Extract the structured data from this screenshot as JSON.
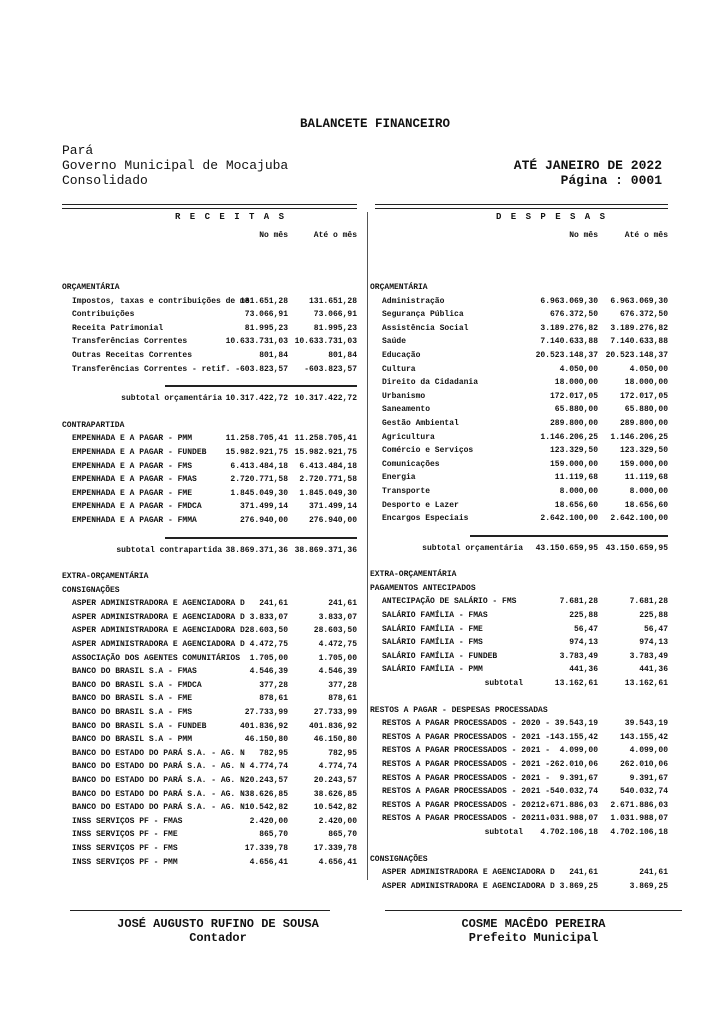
{
  "header": {
    "title": "BALANCETE FINANCEIRO",
    "state": "Pará",
    "entity": "Governo Municipal de Mocajuba",
    "scope": "Consolidado",
    "period": "ATÉ JANEIRO DE 2022",
    "page": "Página : 0001"
  },
  "columns": {
    "receitas": "R E C E I T A S",
    "despesas": "D E S P E S A S",
    "month": "No mês",
    "ytd": "Até o mês"
  },
  "receitas": [
    {
      "kind": "head",
      "label": "ORÇAMENTÁRIA"
    },
    {
      "kind": "item",
      "label": "Impostos, taxas e contribuições de me",
      "month": "131.651,28",
      "ytd": "131.651,28"
    },
    {
      "kind": "item",
      "label": "Contribuições",
      "month": "73.066,91",
      "ytd": "73.066,91"
    },
    {
      "kind": "item",
      "label": "Receita Patrimonial",
      "month": "81.995,23",
      "ytd": "81.995,23"
    },
    {
      "kind": "item",
      "label": "Transferências Correntes",
      "month": "10.633.731,03",
      "ytd": "10.633.731,03"
    },
    {
      "kind": "item",
      "label": "Outras Receitas Correntes",
      "month": "801,84",
      "ytd": "801,84"
    },
    {
      "kind": "item",
      "label": "Transferências Correntes - retif. -",
      "month": "-603.823,57",
      "ytd": "-603.823,57"
    },
    {
      "kind": "subtotal-ruled",
      "label": "subtotal orçamentária",
      "month": "10.317.422,72",
      "ytd": "10.317.422,72"
    },
    {
      "kind": "head",
      "label": "CONTRAPARTIDA"
    },
    {
      "kind": "item",
      "label": "EMPENHADA E A PAGAR - PMM",
      "month": "11.258.705,41",
      "ytd": "11.258.705,41"
    },
    {
      "kind": "item",
      "label": "EMPENHADA E A PAGAR - FUNDEB",
      "month": "15.982.921,75",
      "ytd": "15.982.921,75"
    },
    {
      "kind": "item",
      "label": "EMPENHADA E A PAGAR - FMS",
      "month": "6.413.484,18",
      "ytd": "6.413.484,18"
    },
    {
      "kind": "item",
      "label": "EMPENHADA E A PAGAR - FMAS",
      "month": "2.720.771,58",
      "ytd": "2.720.771,58"
    },
    {
      "kind": "item",
      "label": "EMPENHADA E A PAGAR - FME",
      "month": "1.845.049,30",
      "ytd": "1.845.049,30"
    },
    {
      "kind": "item",
      "label": "EMPENHADA E A PAGAR - FMDCA",
      "month": "371.499,14",
      "ytd": "371.499,14"
    },
    {
      "kind": "item",
      "label": "EMPENHADA E A PAGAR - FMMA",
      "month": "276.940,00",
      "ytd": "276.940,00"
    },
    {
      "kind": "subtotal-ruled",
      "label": "subtotal contrapartida",
      "month": "38.869.371,36",
      "ytd": "38.869.371,36"
    },
    {
      "kind": "head",
      "label": "EXTRA-ORÇAMENTÁRIA"
    },
    {
      "kind": "head",
      "label": "CONSIGNAÇÕES"
    },
    {
      "kind": "item",
      "label": "ASPER ADMINISTRADORA E AGENCIADORA D",
      "month": "241,61",
      "ytd": "241,61"
    },
    {
      "kind": "item",
      "label": "ASPER ADMINISTRADORA E AGENCIADORA D",
      "month": "3.833,07",
      "ytd": "3.833,07"
    },
    {
      "kind": "item",
      "label": "ASPER ADMINISTRADORA E AGENCIADORA D",
      "month": "28.603,50",
      "ytd": "28.603,50"
    },
    {
      "kind": "item",
      "label": "ASPER ADMINISTRADORA E AGENCIADORA D",
      "month": "4.472,75",
      "ytd": "4.472,75"
    },
    {
      "kind": "item",
      "label": "ASSOCIAÇÃO DOS AGENTES COMUNITÁRIOS",
      "month": "1.705,00",
      "ytd": "1.705,00"
    },
    {
      "kind": "item",
      "label": "BANCO DO BRASIL S.A - FMAS",
      "month": "4.546,39",
      "ytd": "4.546,39"
    },
    {
      "kind": "item",
      "label": "BANCO DO BRASIL S.A - FMDCA",
      "month": "377,28",
      "ytd": "377,28"
    },
    {
      "kind": "item",
      "label": "BANCO DO BRASIL S.A - FME",
      "month": "878,61",
      "ytd": "878,61"
    },
    {
      "kind": "item",
      "label": "BANCO DO BRASIL S.A - FMS",
      "month": "27.733,99",
      "ytd": "27.733,99"
    },
    {
      "kind": "item",
      "label": "BANCO DO BRASIL S.A - FUNDEB",
      "month": "401.836,92",
      "ytd": "401.836,92"
    },
    {
      "kind": "item",
      "label": "BANCO DO BRASIL S.A - PMM",
      "month": "46.150,80",
      "ytd": "46.150,80"
    },
    {
      "kind": "item",
      "label": "BANCO DO ESTADO DO PARÁ S.A. - AG. N",
      "month": "782,95",
      "ytd": "782,95"
    },
    {
      "kind": "item",
      "label": "BANCO DO ESTADO DO PARÁ S.A. - AG. N",
      "month": "4.774,74",
      "ytd": "4.774,74"
    },
    {
      "kind": "item",
      "label": "BANCO DO ESTADO DO PARÁ S.A. - AG. N",
      "month": "20.243,57",
      "ytd": "20.243,57"
    },
    {
      "kind": "item",
      "label": "BANCO DO ESTADO DO PARÁ S.A. - AG. N",
      "month": "38.626,85",
      "ytd": "38.626,85"
    },
    {
      "kind": "item",
      "label": "BANCO DO ESTADO DO PARÁ S.A. - AG. N",
      "month": "10.542,82",
      "ytd": "10.542,82"
    },
    {
      "kind": "item",
      "label": "INSS SERVIÇOS PF - FMAS",
      "month": "2.420,00",
      "ytd": "2.420,00"
    },
    {
      "kind": "item",
      "label": "INSS SERVIÇOS PF - FME",
      "month": "865,70",
      "ytd": "865,70"
    },
    {
      "kind": "item",
      "label": "INSS SERVIÇOS PF - FMS",
      "month": "17.339,78",
      "ytd": "17.339,78"
    },
    {
      "kind": "item",
      "label": "INSS SERVIÇOS PF - PMM",
      "month": "4.656,41",
      "ytd": "4.656,41"
    }
  ],
  "despesas": [
    {
      "kind": "head",
      "label": "ORÇAMENTÁRIA"
    },
    {
      "kind": "item",
      "label": "Administração",
      "month": "6.963.069,30",
      "ytd": "6.963.069,30"
    },
    {
      "kind": "item",
      "label": "Segurança Pública",
      "month": "676.372,50",
      "ytd": "676.372,50"
    },
    {
      "kind": "item",
      "label": "Assistência Social",
      "month": "3.189.276,82",
      "ytd": "3.189.276,82"
    },
    {
      "kind": "item",
      "label": "Saúde",
      "month": "7.140.633,88",
      "ytd": "7.140.633,88"
    },
    {
      "kind": "item",
      "label": "Educação",
      "month": "20.523.148,37",
      "ytd": "20.523.148,37"
    },
    {
      "kind": "item",
      "label": "Cultura",
      "month": "4.050,00",
      "ytd": "4.050,00"
    },
    {
      "kind": "item",
      "label": "Direito da Cidadania",
      "month": "18.000,00",
      "ytd": "18.000,00"
    },
    {
      "kind": "item",
      "label": "Urbanismo",
      "month": "172.017,05",
      "ytd": "172.017,05"
    },
    {
      "kind": "item",
      "label": "Saneamento",
      "month": "65.880,00",
      "ytd": "65.880,00"
    },
    {
      "kind": "item",
      "label": "Gestão Ambiental",
      "month": "289.800,00",
      "ytd": "289.800,00"
    },
    {
      "kind": "item",
      "label": "Agricultura",
      "month": "1.146.206,25",
      "ytd": "1.146.206,25"
    },
    {
      "kind": "item",
      "label": "Comércio e Serviços",
      "month": "123.329,50",
      "ytd": "123.329,50"
    },
    {
      "kind": "item",
      "label": "Comunicações",
      "month": "159.000,00",
      "ytd": "159.000,00"
    },
    {
      "kind": "item",
      "label": "Energia",
      "month": "11.119,68",
      "ytd": "11.119,68"
    },
    {
      "kind": "item",
      "label": "Transporte",
      "month": "8.000,00",
      "ytd": "8.000,00"
    },
    {
      "kind": "item",
      "label": "Desporto e Lazer",
      "month": "18.656,60",
      "ytd": "18.656,60"
    },
    {
      "kind": "item",
      "label": "Encargos Especiais",
      "month": "2.642.100,00",
      "ytd": "2.642.100,00"
    },
    {
      "kind": "subtotal-ruled",
      "label": "subtotal orçamentária",
      "month": "43.150.659,95",
      "ytd": "43.150.659,95"
    },
    {
      "kind": "head",
      "label": "EXTRA-ORÇAMENTÁRIA"
    },
    {
      "kind": "head",
      "label": "PAGAMENTOS ANTECIPADOS"
    },
    {
      "kind": "item",
      "label": "ANTECIPAÇÃO DE SALÁRIO - FMS",
      "month": "7.681,28",
      "ytd": "7.681,28"
    },
    {
      "kind": "item",
      "label": "SALÁRIO FAMÍLIA - FMAS",
      "month": "225,88",
      "ytd": "225,88"
    },
    {
      "kind": "item",
      "label": "SALÁRIO FAMÍLIA - FME",
      "month": "56,47",
      "ytd": "56,47"
    },
    {
      "kind": "item",
      "label": "SALÁRIO FAMÍLIA - FMS",
      "month": "974,13",
      "ytd": "974,13"
    },
    {
      "kind": "item",
      "label": "SALÁRIO FAMÍLIA - FUNDEB",
      "month": "3.783,49",
      "ytd": "3.783,49"
    },
    {
      "kind": "item",
      "label": "SALÁRIO FAMÍLIA - PMM",
      "month": "441,36",
      "ytd": "441,36"
    },
    {
      "kind": "subtotal",
      "label": "subtotal",
      "month": "13.162,61",
      "ytd": "13.162,61"
    },
    {
      "kind": "head",
      "label": "RESTOS A PAGAR - DESPESAS PROCESSADAS"
    },
    {
      "kind": "item",
      "label": "RESTOS A PAGAR PROCESSADOS - 2020 -",
      "month": "39.543,19",
      "ytd": "39.543,19"
    },
    {
      "kind": "item",
      "label": "RESTOS A PAGAR PROCESSADOS - 2021 -",
      "month": "143.155,42",
      "ytd": "143.155,42"
    },
    {
      "kind": "item",
      "label": "RESTOS A PAGAR PROCESSADOS - 2021 -",
      "month": "4.099,00",
      "ytd": "4.099,00"
    },
    {
      "kind": "item",
      "label": "RESTOS A PAGAR PROCESSADOS - 2021 -",
      "month": "262.010,06",
      "ytd": "262.010,06"
    },
    {
      "kind": "item",
      "label": "RESTOS A PAGAR PROCESSADOS - 2021 -",
      "month": "9.391,67",
      "ytd": "9.391,67"
    },
    {
      "kind": "item",
      "label": "RESTOS A PAGAR PROCESSADOS - 2021 -",
      "month": "540.032,74",
      "ytd": "540.032,74"
    },
    {
      "kind": "item",
      "label": "RESTOS A PAGAR PROCESSADOS - 2021 -",
      "month": "2.671.886,03",
      "ytd": "2.671.886,03"
    },
    {
      "kind": "item",
      "label": "RESTOS A PAGAR PROCESSADOS - 2021 -",
      "month": "1.031.988,07",
      "ytd": "1.031.988,07"
    },
    {
      "kind": "subtotal",
      "label": "subtotal",
      "month": "4.702.106,18",
      "ytd": "4.702.106,18"
    },
    {
      "kind": "head",
      "label": "CONSIGNAÇÕES"
    },
    {
      "kind": "item",
      "label": "ASPER ADMINISTRADORA E AGENCIADORA D",
      "month": "241,61",
      "ytd": "241,61"
    },
    {
      "kind": "item",
      "label": "ASPER ADMINISTRADORA E AGENCIADORA D",
      "month": "3.869,25",
      "ytd": "3.869,25"
    }
  ],
  "signatures": [
    {
      "name": "JOSÉ AUGUSTO RUFINO DE SOUSA",
      "role": "Contador"
    },
    {
      "name": "COSME MACÊDO PEREIRA",
      "role": "Prefeito Municipal"
    }
  ]
}
